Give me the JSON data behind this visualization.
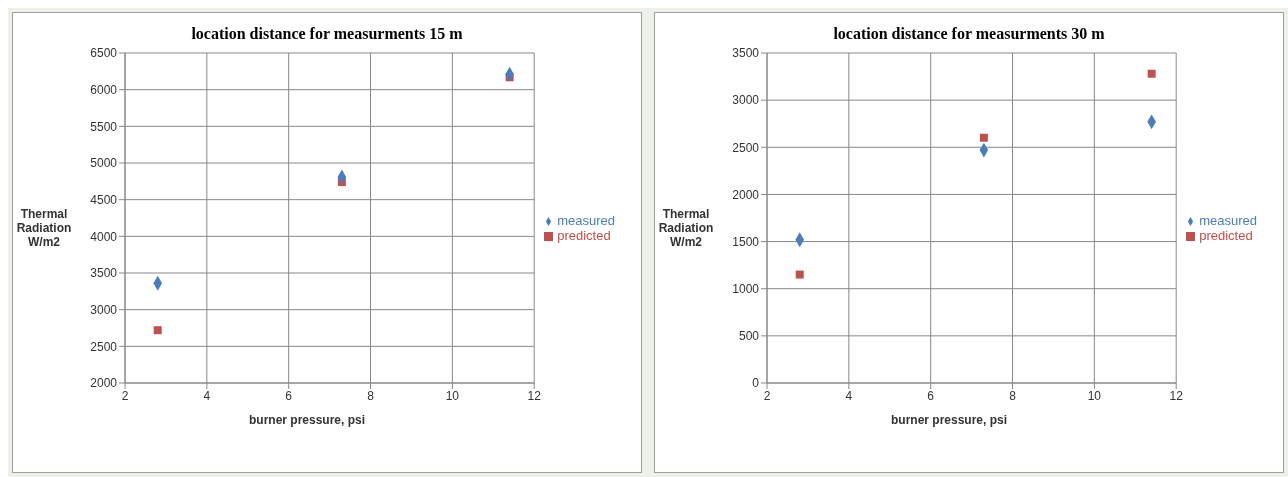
{
  "chart_data": [
    {
      "type": "scatter",
      "title": "location distance for measurments  15 m",
      "xlabel": "burner pressure, psi",
      "ylabel": "Thermal Radiation W/m2",
      "x": [
        2.8,
        7.3,
        11.4
      ],
      "series": [
        {
          "name": "measured",
          "color": "#4a7ebb",
          "marker": "diamond",
          "values": [
            3360,
            4810,
            6210
          ]
        },
        {
          "name": "predicted",
          "color": "#c0504d",
          "marker": "square",
          "values": [
            2720,
            4740,
            6170
          ]
        }
      ],
      "xlim": [
        2,
        12
      ],
      "xticks": [
        2,
        4,
        6,
        8,
        10,
        12
      ],
      "ylim": [
        2000,
        6500
      ],
      "yticks": [
        2000,
        2500,
        3000,
        3500,
        4000,
        4500,
        5000,
        5500,
        6000,
        6500
      ],
      "grid": true,
      "legend": "right"
    },
    {
      "type": "scatter",
      "title": "location distance for measurments  30 m",
      "xlabel": "burner pressure, psi",
      "ylabel": "Thermal Radiation W/m2",
      "x": [
        2.8,
        7.3,
        11.4
      ],
      "series": [
        {
          "name": "measured",
          "color": "#4a7ebb",
          "marker": "diamond",
          "values": [
            1520,
            2470,
            2770
          ]
        },
        {
          "name": "predicted",
          "color": "#c0504d",
          "marker": "square",
          "values": [
            1150,
            2600,
            3280
          ]
        }
      ],
      "xlim": [
        2,
        12
      ],
      "xticks": [
        2,
        4,
        6,
        8,
        10,
        12
      ],
      "ylim": [
        0,
        3500
      ],
      "yticks": [
        0,
        500,
        1000,
        1500,
        2000,
        2500,
        3000,
        3500
      ],
      "grid": true,
      "legend": "right"
    }
  ]
}
